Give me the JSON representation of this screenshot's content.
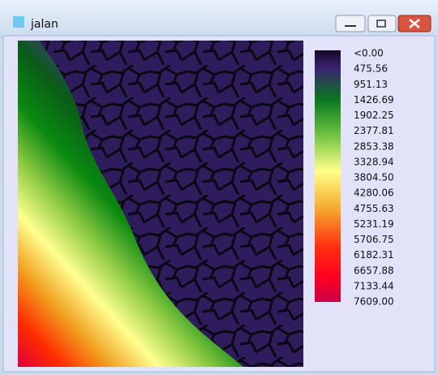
{
  "window": {
    "title": "jalan"
  },
  "legend": {
    "labels": [
      "<0.00",
      "475.56",
      "951.13",
      "1426.69",
      "1902.25",
      "2377.81",
      "2853.38",
      "3328.94",
      "3804.50",
      "4280.06",
      "4755.63",
      "5231.19",
      "5706.75",
      "6182.31",
      "6657.88",
      "7133.44",
      "7609.00"
    ]
  }
}
